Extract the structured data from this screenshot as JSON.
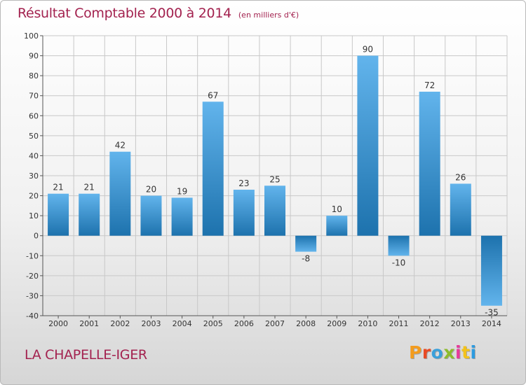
{
  "title": "Résultat Comptable 2000 à 2014",
  "unit": "(en milliers d'€)",
  "commune": "LA CHAPELLE-IGER",
  "logo": {
    "text": "Proxiti",
    "letter_colors": [
      "#f39c1e",
      "#e84a25",
      "#3aa0da",
      "#8dbb2c",
      "#e8389a",
      "#f2c21b",
      "#2c9be0"
    ]
  },
  "colors": {
    "bar_light": "#62b4ec",
    "bar_dark": "#1d72ad",
    "grid": "#c8c8c8",
    "axis_text": "#333333",
    "title": "#a3224f"
  },
  "chart_data": {
    "type": "bar",
    "categories": [
      "2000",
      "2001",
      "2002",
      "2003",
      "2004",
      "2005",
      "2006",
      "2007",
      "2008",
      "2009",
      "2010",
      "2011",
      "2012",
      "2013",
      "2014"
    ],
    "values": [
      21,
      21,
      42,
      20,
      19,
      67,
      23,
      25,
      -8,
      10,
      90,
      -10,
      72,
      26,
      -35
    ],
    "ylim": [
      -40,
      100
    ],
    "yticks": [
      -40,
      -30,
      -20,
      -10,
      0,
      10,
      20,
      30,
      40,
      50,
      60,
      70,
      80,
      90,
      100
    ],
    "grid": true,
    "data_labels": true
  }
}
